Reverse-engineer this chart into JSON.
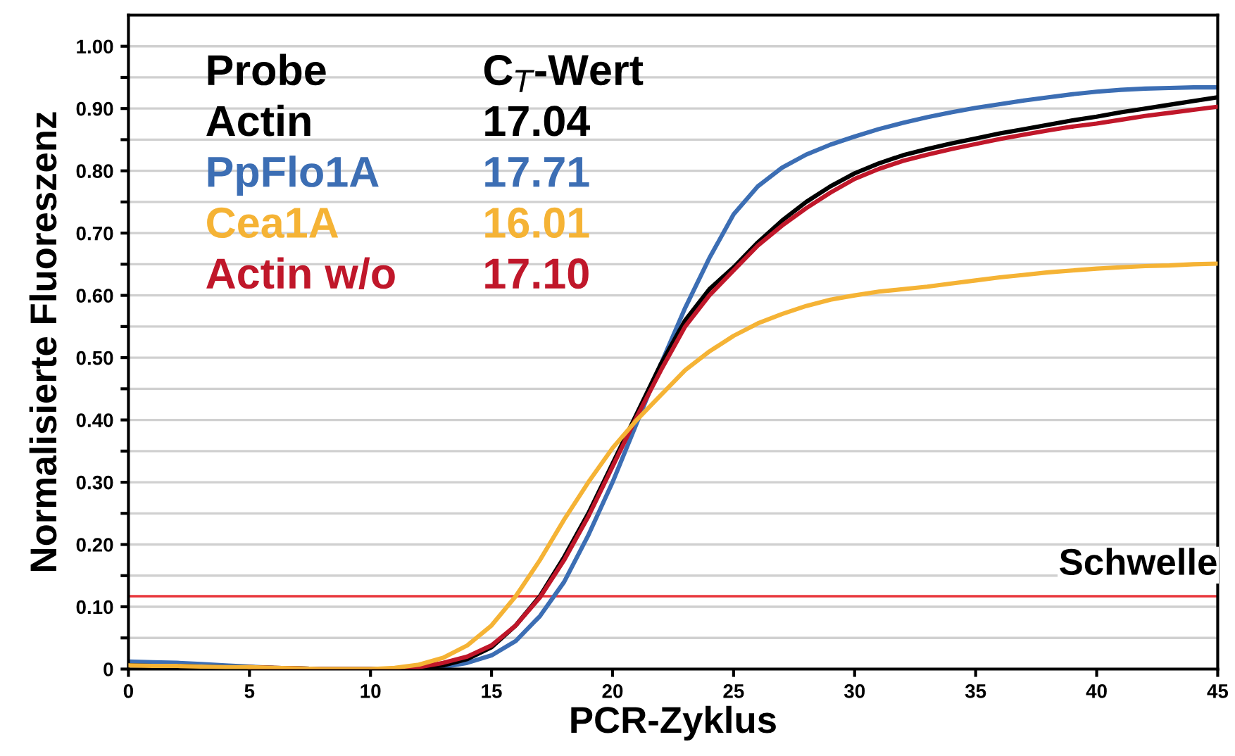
{
  "chart_data": {
    "type": "line",
    "xlabel": "PCR-Zyklus",
    "ylabel": "Normalisierte Fluoreszenz",
    "x": [
      0,
      1,
      2,
      3,
      4,
      5,
      6,
      7,
      8,
      9,
      10,
      11,
      12,
      13,
      14,
      15,
      16,
      17,
      18,
      19,
      20,
      21,
      22,
      23,
      24,
      25,
      26,
      27,
      28,
      29,
      30,
      31,
      32,
      33,
      34,
      35,
      36,
      37,
      38,
      39,
      40,
      41,
      42,
      43,
      44,
      45
    ],
    "series": [
      {
        "name": "Actin",
        "color": "#000000",
        "values": [
          0.006,
          0.005,
          0.005,
          0.004,
          0.003,
          0.003,
          0.002,
          0.001,
          0,
          0,
          0,
          0,
          0.002,
          0.006,
          0.016,
          0.035,
          0.07,
          0.117,
          0.18,
          0.25,
          0.33,
          0.41,
          0.49,
          0.56,
          0.61,
          0.645,
          0.685,
          0.72,
          0.75,
          0.775,
          0.796,
          0.812,
          0.825,
          0.835,
          0.844,
          0.852,
          0.86,
          0.867,
          0.874,
          0.881,
          0.887,
          0.894,
          0.9,
          0.906,
          0.912,
          0.918
        ]
      },
      {
        "name": "PpFlo1A",
        "color": "#3c6eb4",
        "values": [
          0.012,
          0.011,
          0.01,
          0.008,
          0.006,
          0.004,
          0.002,
          0.001,
          0,
          0,
          0,
          0,
          0.001,
          0.003,
          0.01,
          0.022,
          0.045,
          0.085,
          0.14,
          0.215,
          0.3,
          0.395,
          0.49,
          0.58,
          0.66,
          0.73,
          0.775,
          0.805,
          0.826,
          0.842,
          0.855,
          0.867,
          0.877,
          0.886,
          0.894,
          0.901,
          0.907,
          0.913,
          0.918,
          0.923,
          0.927,
          0.93,
          0.932,
          0.933,
          0.934,
          0.934
        ]
      },
      {
        "name": "Cea1A",
        "color": "#f5b335",
        "values": [
          0.006,
          0.005,
          0.005,
          0.004,
          0.003,
          0.003,
          0.002,
          0.001,
          0,
          0,
          0,
          0.002,
          0.007,
          0.018,
          0.038,
          0.07,
          0.117,
          0.175,
          0.24,
          0.3,
          0.355,
          0.4,
          0.44,
          0.48,
          0.51,
          0.535,
          0.555,
          0.57,
          0.583,
          0.593,
          0.6,
          0.606,
          0.61,
          0.614,
          0.619,
          0.624,
          0.629,
          0.633,
          0.637,
          0.64,
          0.643,
          0.645,
          0.647,
          0.648,
          0.65,
          0.651
        ]
      },
      {
        "name": "Actin w/o",
        "color": "#c0172a",
        "values": [
          null,
          null,
          null,
          null,
          null,
          0.003,
          0.002,
          0.001,
          0,
          0,
          0,
          0,
          0.003,
          0.01,
          0.02,
          0.038,
          0.07,
          0.115,
          0.175,
          0.245,
          0.325,
          0.405,
          0.48,
          0.55,
          0.6,
          0.64,
          0.68,
          0.712,
          0.74,
          0.765,
          0.787,
          0.803,
          0.816,
          0.826,
          0.835,
          0.843,
          0.851,
          0.858,
          0.865,
          0.871,
          0.876,
          0.882,
          0.888,
          0.893,
          0.898,
          0.903
        ]
      }
    ],
    "annotations": [
      "Probe",
      "C$_{T}$-Wert",
      "17.04",
      "17.71",
      "16.01",
      "17.10"
    ],
    "ref_lines": [
      {
        "axis": "y",
        "value": 0.117,
        "label": "Schwelle",
        "color": "#e8373c"
      }
    ],
    "xlim": [
      0,
      45
    ],
    "xticks": [
      0,
      5,
      10,
      15,
      20,
      25,
      30,
      35,
      40,
      45
    ],
    "ylim": [
      0,
      1.05
    ],
    "yticks": [
      {
        "value": 0,
        "label": "0"
      },
      {
        "value": 0.05,
        "label": null
      },
      {
        "value": 0.1,
        "label": "0.10"
      },
      {
        "value": 0.15,
        "label": null
      },
      {
        "value": 0.2,
        "label": "0.20"
      },
      {
        "value": 0.25,
        "label": null
      },
      {
        "value": 0.3,
        "label": "0.30"
      },
      {
        "value": 0.35,
        "label": null
      },
      {
        "value": 0.4,
        "label": "0.40"
      },
      {
        "value": 0.45,
        "label": null
      },
      {
        "value": 0.5,
        "label": "0.50"
      },
      {
        "value": 0.55,
        "label": null
      },
      {
        "value": 0.6,
        "label": "0.60"
      },
      {
        "value": 0.65,
        "label": null
      },
      {
        "value": 0.7,
        "label": "0.70"
      },
      {
        "value": 0.75,
        "label": null
      },
      {
        "value": 0.8,
        "label": "0.80"
      },
      {
        "value": 0.85,
        "label": null
      },
      {
        "value": 0.9,
        "label": "0.90"
      },
      {
        "value": 0.95,
        "label": null
      },
      {
        "value": 1.0,
        "label": "1.00"
      }
    ],
    "grid": "y",
    "legend": "top left",
    "marker": "none",
    "line_style": "solid"
  }
}
